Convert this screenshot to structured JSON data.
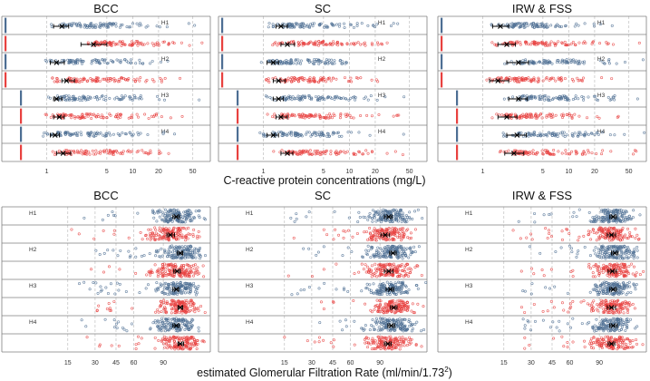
{
  "colors": {
    "blue": "#4d6e93",
    "red": "#e8413f",
    "grid": "#c8c8c8",
    "marker": "#000000",
    "frame": "#7f7f7f"
  },
  "top_xlabel": "C-reactive protein concentrations (mg/L)",
  "bottom_xlabel": "estimated Glomerular Filtration Rate (ml/min/1.73",
  "bottom_xlabel_sup": "2",
  "bottom_xlabel_close": ")",
  "chart_data": [
    {
      "type": "scatter",
      "title": "BCC",
      "xlabel": "C-reactive protein concentrations (mg/L)",
      "xscale": "log",
      "xlim": [
        0.3,
        80
      ],
      "ticks": [
        1,
        5,
        10,
        20,
        50
      ],
      "tick_labels": [
        "1",
        "5",
        "10",
        "20",
        "50"
      ],
      "row_labels": [
        "H1",
        "H2",
        "H3",
        "H4"
      ],
      "series": [
        {
          "group": "H1",
          "color": "blue",
          "median": 1.5,
          "ci": [
            1.2,
            1.8
          ]
        },
        {
          "group": "H1",
          "color": "red",
          "median": 3.5,
          "ci": [
            2.5,
            5
          ]
        },
        {
          "group": "H2",
          "color": "blue",
          "median": 1.3,
          "ci": [
            1.1,
            1.6
          ]
        },
        {
          "group": "H2",
          "color": "red",
          "median": 1.7,
          "ci": [
            1.5,
            2.1
          ]
        },
        {
          "group": "H3",
          "color": "blue",
          "median": 1.3,
          "ci": [
            1.2,
            1.5
          ]
        },
        {
          "group": "H3",
          "color": "red",
          "median": 1.4,
          "ci": [
            1.2,
            1.6
          ]
        },
        {
          "group": "H4",
          "color": "blue",
          "median": 1.25,
          "ci": [
            1.1,
            1.4
          ]
        },
        {
          "group": "H4",
          "color": "red",
          "median": 1.55,
          "ci": [
            1.3,
            1.9
          ]
        }
      ]
    },
    {
      "type": "scatter",
      "title": "SC",
      "xlabel": "C-reactive protein concentrations (mg/L)",
      "xscale": "log",
      "xlim": [
        0.3,
        80
      ],
      "ticks": [
        1,
        5,
        10,
        20,
        50
      ],
      "tick_labels": [
        "1",
        "5",
        "10",
        "20",
        "50"
      ],
      "row_labels": [
        "H1",
        "H2",
        "H3",
        "H4"
      ],
      "series": [
        {
          "group": "H1",
          "color": "blue",
          "median": 1.6,
          "ci": [
            1.4,
            1.9
          ]
        },
        {
          "group": "H1",
          "color": "red",
          "median": 1.9,
          "ci": [
            1.6,
            2.3
          ]
        },
        {
          "group": "H2",
          "color": "blue",
          "median": 1.3,
          "ci": [
            1.1,
            1.5
          ]
        },
        {
          "group": "H2",
          "color": "red",
          "median": 1.5,
          "ci": [
            1.3,
            1.8
          ]
        },
        {
          "group": "H3",
          "color": "blue",
          "median": 1.5,
          "ci": [
            1.3,
            1.7
          ]
        },
        {
          "group": "H3",
          "color": "red",
          "median": 1.6,
          "ci": [
            1.4,
            1.9
          ]
        },
        {
          "group": "H4",
          "color": "blue",
          "median": 1.3,
          "ci": [
            1.1,
            1.5
          ]
        },
        {
          "group": "H4",
          "color": "red",
          "median": 1.9,
          "ci": [
            1.6,
            2.2
          ]
        }
      ]
    },
    {
      "type": "scatter",
      "title": "IRW & FSS",
      "xlabel": "C-reactive protein concentrations (mg/L)",
      "xscale": "log",
      "xlim": [
        0.3,
        80
      ],
      "ticks": [
        1,
        5,
        10,
        20,
        50
      ],
      "tick_labels": [
        "1",
        "5",
        "10",
        "20",
        "50"
      ],
      "row_labels": [
        "H1",
        "H2",
        "H3",
        "H4"
      ],
      "series": [
        {
          "group": "H1",
          "color": "blue",
          "median": 1.6,
          "ci": [
            1.3,
            2.0
          ]
        },
        {
          "group": "H1",
          "color": "red",
          "median": 1.9,
          "ci": [
            1.5,
            2.4
          ]
        },
        {
          "group": "H2",
          "color": "blue",
          "median": 2.6,
          "ci": [
            1.9,
            3.4
          ]
        },
        {
          "group": "H2",
          "color": "red",
          "median": 1.5,
          "ci": [
            1.2,
            2.0
          ]
        },
        {
          "group": "H3",
          "color": "blue",
          "median": 2.6,
          "ci": [
            2.0,
            3.3
          ]
        },
        {
          "group": "H3",
          "color": "red",
          "median": 1.9,
          "ci": [
            1.5,
            2.5
          ]
        },
        {
          "group": "H4",
          "color": "blue",
          "median": 2.5,
          "ci": [
            1.9,
            3.2
          ]
        },
        {
          "group": "H4",
          "color": "red",
          "median": 2.3,
          "ci": [
            1.8,
            3.0
          ]
        }
      ]
    },
    {
      "type": "scatter",
      "title": "BCC",
      "xlabel": "estimated Glomerular Filtration Rate (ml/min/1.73^2)",
      "xscale": "sqrt",
      "xlim": [
        0,
        150
      ],
      "ticks": [
        15,
        30,
        45,
        60,
        90
      ],
      "tick_labels": [
        "15",
        "30",
        "45",
        "60",
        "90"
      ],
      "row_labels": [
        "H1",
        "H2",
        "H3",
        "H4"
      ],
      "series": [
        {
          "group": "H1",
          "color": "blue",
          "median": 105,
          "ci": [
            101,
            109
          ]
        },
        {
          "group": "H1",
          "color": "red",
          "median": 98,
          "ci": [
            94,
            103
          ]
        },
        {
          "group": "H2",
          "color": "blue",
          "median": 110,
          "ci": [
            106,
            113
          ]
        },
        {
          "group": "H2",
          "color": "red",
          "median": 106,
          "ci": [
            102,
            110
          ]
        },
        {
          "group": "H3",
          "color": "blue",
          "median": 105,
          "ci": [
            101,
            108
          ]
        },
        {
          "group": "H3",
          "color": "red",
          "median": 110,
          "ci": [
            107,
            113
          ]
        },
        {
          "group": "H4",
          "color": "blue",
          "median": 105,
          "ci": [
            101,
            109
          ]
        },
        {
          "group": "H4",
          "color": "red",
          "median": 110,
          "ci": [
            107,
            114
          ]
        }
      ]
    },
    {
      "type": "scatter",
      "title": "SC",
      "xlabel": "estimated Glomerular Filtration Rate (ml/min/1.73^2)",
      "xscale": "sqrt",
      "xlim": [
        0,
        150
      ],
      "ticks": [
        15,
        30,
        45,
        60,
        90
      ],
      "tick_labels": [
        "15",
        "30",
        "45",
        "60",
        "90"
      ],
      "row_labels": [
        "H1",
        "H2",
        "H3",
        "H4"
      ],
      "series": [
        {
          "group": "H1",
          "color": "blue",
          "median": 100,
          "ci": [
            95,
            104
          ]
        },
        {
          "group": "H1",
          "color": "red",
          "median": 96,
          "ci": [
            91,
            101
          ]
        },
        {
          "group": "H2",
          "color": "blue",
          "median": 105,
          "ci": [
            101,
            109
          ]
        },
        {
          "group": "H2",
          "color": "red",
          "median": 100,
          "ci": [
            95,
            105
          ]
        },
        {
          "group": "H3",
          "color": "blue",
          "median": 102,
          "ci": [
            97,
            106
          ]
        },
        {
          "group": "H3",
          "color": "red",
          "median": 106,
          "ci": [
            102,
            110
          ]
        },
        {
          "group": "H4",
          "color": "blue",
          "median": 103,
          "ci": [
            99,
            107
          ]
        },
        {
          "group": "H4",
          "color": "red",
          "median": 99,
          "ci": [
            95,
            103
          ]
        }
      ]
    },
    {
      "type": "scatter",
      "title": "IRW & FSS",
      "xlabel": "estimated Glomerular Filtration Rate (ml/min/1.73^2)",
      "xscale": "sqrt",
      "xlim": [
        0,
        150
      ],
      "ticks": [
        15,
        30,
        45,
        60,
        90
      ],
      "tick_labels": [
        "15",
        "30",
        "45",
        "60",
        "90"
      ],
      "row_labels": [
        "H1",
        "H2",
        "H3",
        "H4"
      ],
      "series": [
        {
          "group": "H1",
          "color": "blue",
          "median": 106,
          "ci": [
            102,
            110
          ]
        },
        {
          "group": "H1",
          "color": "red",
          "median": 104,
          "ci": [
            99,
            109
          ]
        },
        {
          "group": "H2",
          "color": "blue",
          "median": 108,
          "ci": [
            104,
            112
          ]
        },
        {
          "group": "H2",
          "color": "red",
          "median": 105,
          "ci": [
            100,
            110
          ]
        },
        {
          "group": "H3",
          "color": "blue",
          "median": 106,
          "ci": [
            102,
            110
          ]
        },
        {
          "group": "H3",
          "color": "red",
          "median": 104,
          "ci": [
            99,
            109
          ]
        },
        {
          "group": "H4",
          "color": "blue",
          "median": 106,
          "ci": [
            102,
            111
          ]
        },
        {
          "group": "H4",
          "color": "red",
          "median": 104,
          "ci": [
            100,
            108
          ]
        }
      ]
    }
  ]
}
